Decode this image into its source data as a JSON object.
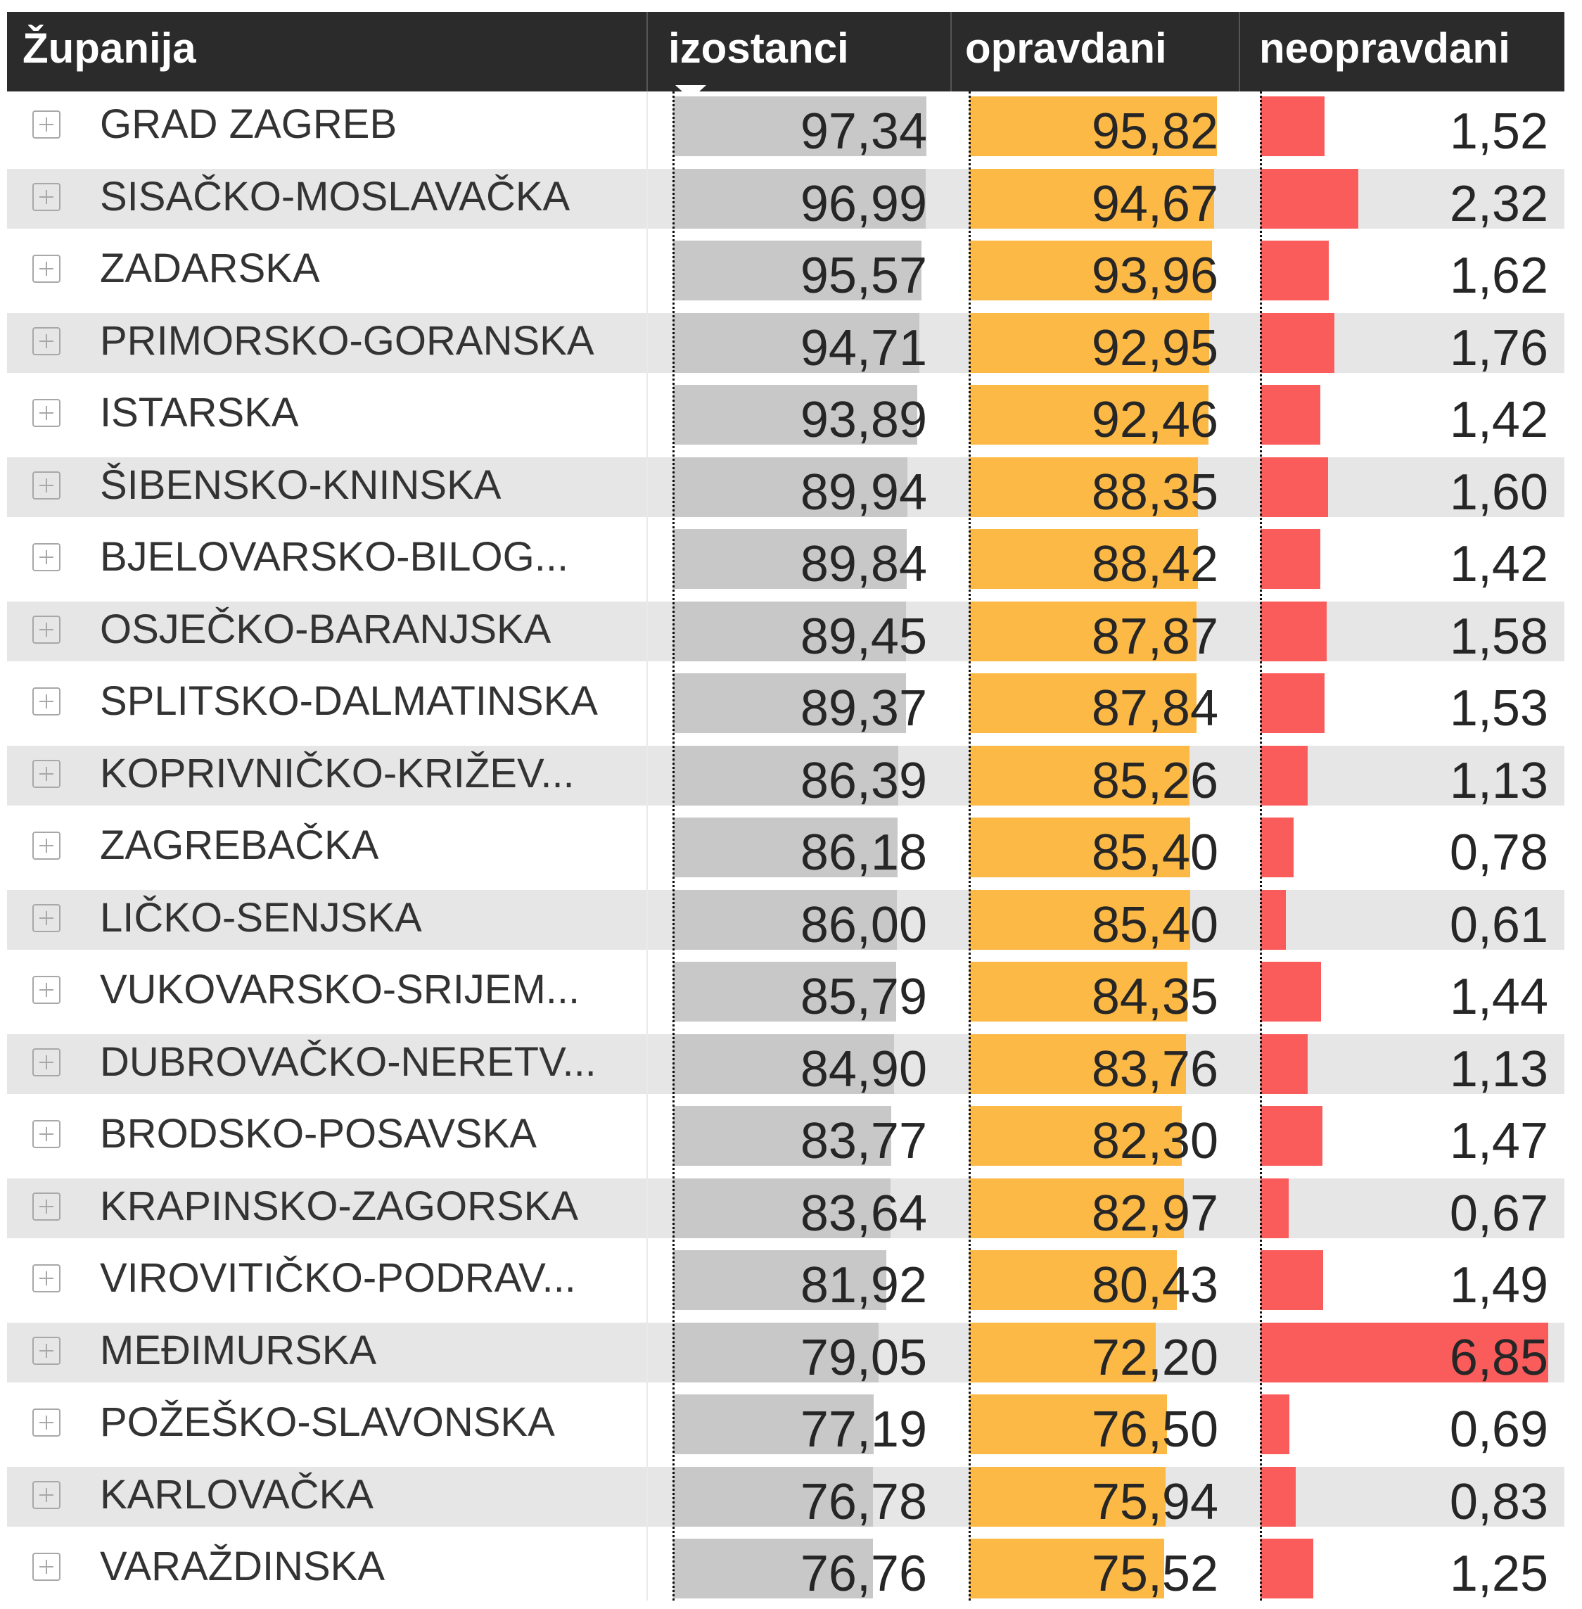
{
  "header": {
    "col_name": "Županija",
    "col_total": "izostanci",
    "col_excused": "opravdani",
    "col_unexcused": "neopravdani"
  },
  "colors": {
    "header_bg": "#2b2b2b",
    "total_bar": "#c8c8c8",
    "excused_bar": "#fdb945",
    "unexcused_bar": "#fa5c5c",
    "alt_row": "#e6e6e6"
  },
  "chart_data": {
    "type": "table",
    "columns": [
      "Županija",
      "izostanci",
      "opravdani",
      "neopravdani"
    ],
    "sorted_by": "izostanci",
    "sort_direction": "descending",
    "rows": [
      {
        "name": "GRAD ZAGREB",
        "izostanci": "97,34",
        "opravdani": "95,82",
        "neopravdani": "1,52"
      },
      {
        "name": "SISAČKO-MOSLAVAČKA",
        "izostanci": "96,99",
        "opravdani": "94,67",
        "neopravdani": "2,32"
      },
      {
        "name": "ZADARSKA",
        "izostanci": "95,57",
        "opravdani": "93,96",
        "neopravdani": "1,62"
      },
      {
        "name": "PRIMORSKO-GORANSKA",
        "izostanci": "94,71",
        "opravdani": "92,95",
        "neopravdani": "1,76"
      },
      {
        "name": "ISTARSKA",
        "izostanci": "93,89",
        "opravdani": "92,46",
        "neopravdani": "1,42"
      },
      {
        "name": "ŠIBENSKO-KNINSKA",
        "izostanci": "89,94",
        "opravdani": "88,35",
        "neopravdani": "1,60"
      },
      {
        "name": "BJELOVARSKO-BILOG...",
        "izostanci": "89,84",
        "opravdani": "88,42",
        "neopravdani": "1,42"
      },
      {
        "name": "OSJEČKO-BARANJSKA",
        "izostanci": "89,45",
        "opravdani": "87,87",
        "neopravdani": "1,58"
      },
      {
        "name": "SPLITSKO-DALMATINSKA",
        "izostanci": "89,37",
        "opravdani": "87,84",
        "neopravdani": "1,53"
      },
      {
        "name": "KOPRIVNIČKO-KRIŽEV...",
        "izostanci": "86,39",
        "opravdani": "85,26",
        "neopravdani": "1,13"
      },
      {
        "name": "ZAGREBAČKA",
        "izostanci": "86,18",
        "opravdani": "85,40",
        "neopravdani": "0,78"
      },
      {
        "name": "LIČKO-SENJSKA",
        "izostanci": "86,00",
        "opravdani": "85,40",
        "neopravdani": "0,61"
      },
      {
        "name": "VUKOVARSKO-SRIJEM...",
        "izostanci": "85,79",
        "opravdani": "84,35",
        "neopravdani": "1,44"
      },
      {
        "name": "DUBROVAČKO-NERETV...",
        "izostanci": "84,90",
        "opravdani": "83,76",
        "neopravdani": "1,13"
      },
      {
        "name": "BRODSKO-POSAVSKA",
        "izostanci": "83,77",
        "opravdani": "82,30",
        "neopravdani": "1,47"
      },
      {
        "name": "KRAPINSKO-ZAGORSKA",
        "izostanci": "83,64",
        "opravdani": "82,97",
        "neopravdani": "0,67"
      },
      {
        "name": "VIROVITIČKO-PODRAV...",
        "izostanci": "81,92",
        "opravdani": "80,43",
        "neopravdani": "1,49"
      },
      {
        "name": "MEĐIMURSKA",
        "izostanci": "79,05",
        "opravdani": "72,20",
        "neopravdani": "6,85"
      },
      {
        "name": "POŽEŠKO-SLAVONSKA",
        "izostanci": "77,19",
        "opravdani": "76,50",
        "neopravdani": "0,69"
      },
      {
        "name": "KARLOVAČKA",
        "izostanci": "76,78",
        "opravdani": "75,94",
        "neopravdani": "0,83"
      },
      {
        "name": "VARAŽDINSKA",
        "izostanci": "76,76",
        "opravdani": "75,52",
        "neopravdani": "1,25"
      }
    ]
  }
}
